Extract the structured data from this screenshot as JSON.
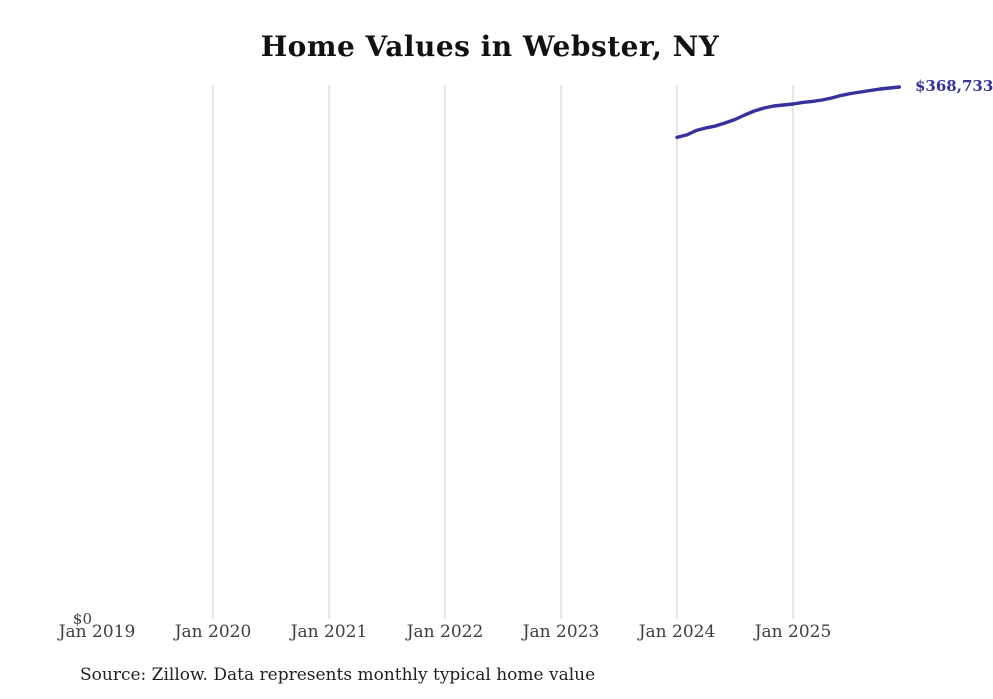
{
  "chart_data": {
    "type": "line",
    "title": "Home Values in Webster, NY",
    "xlabel": "",
    "ylabel": "",
    "x_tick_labels": [
      "Jan 2019",
      "Jan 2020",
      "Jan 2021",
      "Jan 2022",
      "Jan 2023",
      "Jan 2024",
      "Jan 2025"
    ],
    "y_tick_labels": [
      "$0"
    ],
    "ylim": [
      0,
      368733
    ],
    "grid": "vertical",
    "legend": "none",
    "line_color": "#37319e",
    "gridline_color": "#cccccc",
    "end_point_label": "$368,733",
    "source_note": "Source: Zillow. Data represents monthly typical home value",
    "series": [
      {
        "name": "Monthly typical home value",
        "x": [
          "Jan 2024",
          "Feb 2024",
          "Mar 2024",
          "Apr 2024",
          "May 2024",
          "Jun 2024",
          "Jul 2024",
          "Aug 2024",
          "Sep 2024",
          "Oct 2024",
          "Nov 2024",
          "Dec 2024",
          "Jan 2025",
          "Feb 2025",
          "Mar 2025",
          "Apr 2025",
          "May 2025",
          "Jun 2025",
          "Jul 2025",
          "Aug 2025",
          "Sep 2025",
          "Oct 2025",
          "Nov 2025",
          "Dec 2025"
        ],
        "values": [
          333300,
          335100,
          338200,
          340000,
          341400,
          343500,
          345900,
          349100,
          351900,
          354000,
          355400,
          356100,
          356800,
          357900,
          358600,
          359600,
          361000,
          362800,
          364200,
          365200,
          366300,
          367300,
          368000,
          368733
        ]
      }
    ]
  }
}
